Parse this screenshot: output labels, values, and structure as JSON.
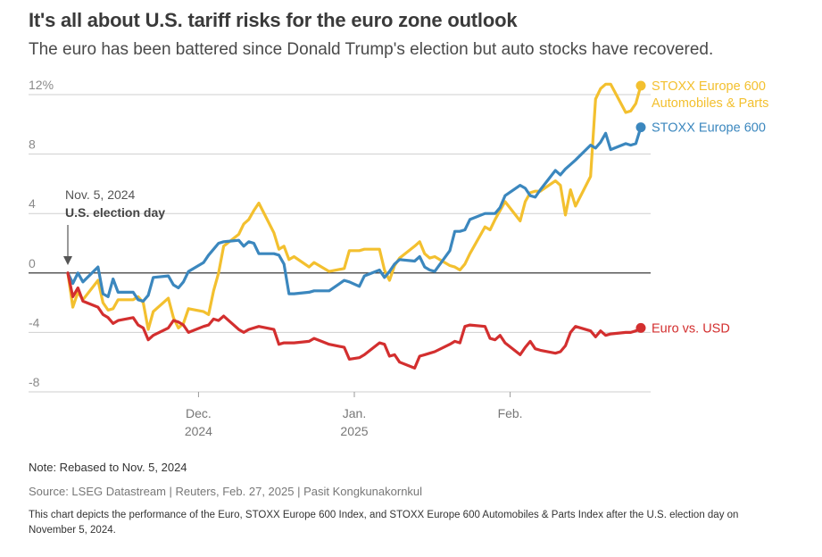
{
  "header": {
    "title": "It's all about U.S. tariff risks for the euro zone outlook",
    "subtitle": "The euro has been battered since Donald Trump's election but auto stocks have recovered."
  },
  "footer": {
    "note": "Note: Rebased to Nov. 5, 2024",
    "source": "Source: LSEG Datastream | Reuters, Feb. 27, 2025 | Pasit Kongkunakornkul",
    "description": "This chart depicts the performance of the Euro, STOXX Europe 600 Index, and STOXX Europe 600 Automobiles & Parts Index after the U.S. election day on November 5, 2024."
  },
  "chart_data": {
    "type": "line",
    "ylim": [
      -8,
      12
    ],
    "y_ticks": [
      {
        "value": 12,
        "label": "12%"
      },
      {
        "value": 8,
        "label": "8"
      },
      {
        "value": 4,
        "label": "4"
      },
      {
        "value": 0,
        "label": "0"
      },
      {
        "value": -4,
        "label": "-4"
      },
      {
        "value": -8,
        "label": "-8"
      }
    ],
    "x_range": [
      "2024-11-05",
      "2025-02-27"
    ],
    "x_ticks": [
      {
        "date": "2024-12-01",
        "line1": "Dec.",
        "line2": "2024"
      },
      {
        "date": "2025-01-01",
        "line1": "Jan.",
        "line2": "2025"
      },
      {
        "date": "2025-02-01",
        "line1": "Feb.",
        "line2": ""
      }
    ],
    "annotation": {
      "date": "2024-11-05",
      "line1": "Nov. 5, 2024",
      "line2": "U.S. election day"
    },
    "series": [
      {
        "name": "STOXX Europe 600 Automobiles & Parts",
        "label_lines": [
          "STOXX Europe 600",
          "Automobiles & Parts"
        ],
        "color": "#f3c02f",
        "points": [
          [
            "2024-11-05",
            0
          ],
          [
            "2024-11-06",
            -2.3
          ],
          [
            "2024-11-07",
            -1.3
          ],
          [
            "2024-11-08",
            -1.8
          ],
          [
            "2024-11-11",
            -0.5
          ],
          [
            "2024-11-12",
            -2
          ],
          [
            "2024-11-13",
            -2.5
          ],
          [
            "2024-11-14",
            -2.4
          ],
          [
            "2024-11-15",
            -1.8
          ],
          [
            "2024-11-18",
            -1.8
          ],
          [
            "2024-11-19",
            -1.6
          ],
          [
            "2024-11-20",
            -2
          ],
          [
            "2024-11-21",
            -3.8
          ],
          [
            "2024-11-22",
            -2.6
          ],
          [
            "2024-11-25",
            -1.7
          ],
          [
            "2024-11-26",
            -3
          ],
          [
            "2024-11-27",
            -3.7
          ],
          [
            "2024-11-28",
            -3.4
          ],
          [
            "2024-11-29",
            -2.4
          ],
          [
            "2024-12-02",
            -2.6
          ],
          [
            "2024-12-03",
            -2.8
          ],
          [
            "2024-12-04",
            -1.2
          ],
          [
            "2024-12-05",
            0
          ],
          [
            "2024-12-06",
            1.8
          ],
          [
            "2024-12-09",
            2.6
          ],
          [
            "2024-12-10",
            3.3
          ],
          [
            "2024-12-11",
            3.6
          ],
          [
            "2024-12-12",
            4.2
          ],
          [
            "2024-12-13",
            4.7
          ],
          [
            "2024-12-16",
            2.7
          ],
          [
            "2024-12-17",
            1.6
          ],
          [
            "2024-12-18",
            1.8
          ],
          [
            "2024-12-19",
            0.9
          ],
          [
            "2024-12-20",
            1.1
          ],
          [
            "2024-12-23",
            0.4
          ],
          [
            "2024-12-24",
            0.7
          ],
          [
            "2024-12-27",
            0.1
          ],
          [
            "2024-12-30",
            0.3
          ],
          [
            "2024-12-31",
            1.5
          ],
          [
            "2025-01-02",
            1.5
          ],
          [
            "2025-01-03",
            1.6
          ],
          [
            "2025-01-06",
            1.6
          ],
          [
            "2025-01-07",
            0.2
          ],
          [
            "2025-01-08",
            -0.5
          ],
          [
            "2025-01-09",
            0.5
          ],
          [
            "2025-01-10",
            1
          ],
          [
            "2025-01-13",
            1.8
          ],
          [
            "2025-01-14",
            2.1
          ],
          [
            "2025-01-15",
            1.3
          ],
          [
            "2025-01-16",
            1
          ],
          [
            "2025-01-17",
            1.1
          ],
          [
            "2025-01-20",
            0.5
          ],
          [
            "2025-01-21",
            0.4
          ],
          [
            "2025-01-22",
            0.2
          ],
          [
            "2025-01-23",
            0.6
          ],
          [
            "2025-01-24",
            1.3
          ],
          [
            "2025-01-27",
            3.1
          ],
          [
            "2025-01-28",
            2.9
          ],
          [
            "2025-01-29",
            3.6
          ],
          [
            "2025-01-30",
            4.2
          ],
          [
            "2025-01-31",
            4.8
          ],
          [
            "2025-02-03",
            3.5
          ],
          [
            "2025-02-04",
            4.8
          ],
          [
            "2025-02-05",
            5.4
          ],
          [
            "2025-02-06",
            5.5
          ],
          [
            "2025-02-07",
            5.5
          ],
          [
            "2025-02-10",
            6.2
          ],
          [
            "2025-02-11",
            5.9
          ],
          [
            "2025-02-12",
            3.9
          ],
          [
            "2025-02-13",
            5.6
          ],
          [
            "2025-02-14",
            4.5
          ],
          [
            "2025-02-17",
            6.5
          ],
          [
            "2025-02-18",
            11.7
          ],
          [
            "2025-02-19",
            12.4
          ],
          [
            "2025-02-20",
            12.7
          ],
          [
            "2025-02-21",
            12.7
          ],
          [
            "2025-02-24",
            10.8
          ],
          [
            "2025-02-25",
            10.9
          ],
          [
            "2025-02-26",
            11.4
          ],
          [
            "2025-02-27",
            12.6
          ]
        ]
      },
      {
        "name": "STOXX Europe 600",
        "label_lines": [
          "STOXX Europe 600"
        ],
        "color": "#3b87be",
        "points": [
          [
            "2024-11-05",
            0
          ],
          [
            "2024-11-06",
            -0.7
          ],
          [
            "2024-11-07",
            0
          ],
          [
            "2024-11-08",
            -0.6
          ],
          [
            "2024-11-11",
            0.4
          ],
          [
            "2024-11-12",
            -1.4
          ],
          [
            "2024-11-13",
            -1.6
          ],
          [
            "2024-11-14",
            -0.4
          ],
          [
            "2024-11-15",
            -1.3
          ],
          [
            "2024-11-18",
            -1.3
          ],
          [
            "2024-11-19",
            -1.8
          ],
          [
            "2024-11-20",
            -1.9
          ],
          [
            "2024-11-21",
            -1.5
          ],
          [
            "2024-11-22",
            -0.3
          ],
          [
            "2024-11-25",
            -0.2
          ],
          [
            "2024-11-26",
            -0.8
          ],
          [
            "2024-11-27",
            -1
          ],
          [
            "2024-11-28",
            -0.6
          ],
          [
            "2024-11-29",
            0.1
          ],
          [
            "2024-12-02",
            0.7
          ],
          [
            "2024-12-03",
            1.2
          ],
          [
            "2024-12-04",
            1.6
          ],
          [
            "2024-12-05",
            2
          ],
          [
            "2024-12-06",
            2.1
          ],
          [
            "2024-12-09",
            2.2
          ],
          [
            "2024-12-10",
            1.8
          ],
          [
            "2024-12-11",
            2.1
          ],
          [
            "2024-12-12",
            2
          ],
          [
            "2024-12-13",
            1.3
          ],
          [
            "2024-12-16",
            1.3
          ],
          [
            "2024-12-17",
            1.2
          ],
          [
            "2024-12-18",
            0.6
          ],
          [
            "2024-12-19",
            -1.4
          ],
          [
            "2024-12-20",
            -1.4
          ],
          [
            "2024-12-23",
            -1.3
          ],
          [
            "2024-12-24",
            -1.2
          ],
          [
            "2024-12-27",
            -1.2
          ],
          [
            "2024-12-30",
            -0.5
          ],
          [
            "2024-12-31",
            -0.6
          ],
          [
            "2025-01-02",
            -0.9
          ],
          [
            "2025-01-03",
            -0.2
          ],
          [
            "2025-01-06",
            0.2
          ],
          [
            "2025-01-07",
            -0.3
          ],
          [
            "2025-01-08",
            0.1
          ],
          [
            "2025-01-09",
            0.6
          ],
          [
            "2025-01-10",
            0.9
          ],
          [
            "2025-01-13",
            0.8
          ],
          [
            "2025-01-14",
            1.1
          ],
          [
            "2025-01-15",
            0.4
          ],
          [
            "2025-01-16",
            0.2
          ],
          [
            "2025-01-17",
            0.1
          ],
          [
            "2025-01-20",
            1.5
          ],
          [
            "2025-01-21",
            2.8
          ],
          [
            "2025-01-22",
            2.8
          ],
          [
            "2025-01-23",
            2.9
          ],
          [
            "2025-01-24",
            3.6
          ],
          [
            "2025-01-27",
            4
          ],
          [
            "2025-01-28",
            4
          ],
          [
            "2025-01-29",
            4
          ],
          [
            "2025-01-30",
            4.4
          ],
          [
            "2025-01-31",
            5.2
          ],
          [
            "2025-02-03",
            5.9
          ],
          [
            "2025-02-04",
            5.7
          ],
          [
            "2025-02-05",
            5.2
          ],
          [
            "2025-02-06",
            5.1
          ],
          [
            "2025-02-07",
            5.6
          ],
          [
            "2025-02-10",
            6.9
          ],
          [
            "2025-02-11",
            6.6
          ],
          [
            "2025-02-12",
            7
          ],
          [
            "2025-02-13",
            7.3
          ],
          [
            "2025-02-14",
            7.6
          ],
          [
            "2025-02-17",
            8.6
          ],
          [
            "2025-02-18",
            8.4
          ],
          [
            "2025-02-19",
            8.8
          ],
          [
            "2025-02-20",
            9.4
          ],
          [
            "2025-02-21",
            8.3
          ],
          [
            "2025-02-24",
            8.7
          ],
          [
            "2025-02-25",
            8.6
          ],
          [
            "2025-02-26",
            8.7
          ],
          [
            "2025-02-27",
            9.8
          ]
        ]
      },
      {
        "name": "Euro vs. USD",
        "label_lines": [
          "Euro vs. USD"
        ],
        "color": "#d32f2f",
        "points": [
          [
            "2024-11-05",
            0
          ],
          [
            "2024-11-06",
            -1.6
          ],
          [
            "2024-11-07",
            -1
          ],
          [
            "2024-11-08",
            -1.9
          ],
          [
            "2024-11-11",
            -2.3
          ],
          [
            "2024-11-12",
            -2.8
          ],
          [
            "2024-11-13",
            -3
          ],
          [
            "2024-11-14",
            -3.4
          ],
          [
            "2024-11-15",
            -3.2
          ],
          [
            "2024-11-18",
            -3
          ],
          [
            "2024-11-19",
            -3.5
          ],
          [
            "2024-11-20",
            -3.7
          ],
          [
            "2024-11-21",
            -4.5
          ],
          [
            "2024-11-22",
            -4.2
          ],
          [
            "2024-11-25",
            -3.7
          ],
          [
            "2024-11-26",
            -3.2
          ],
          [
            "2024-11-27",
            -3.3
          ],
          [
            "2024-11-28",
            -3.5
          ],
          [
            "2024-11-29",
            -4
          ],
          [
            "2024-12-02",
            -3.6
          ],
          [
            "2024-12-03",
            -3.5
          ],
          [
            "2024-12-04",
            -3.1
          ],
          [
            "2024-12-05",
            -3.2
          ],
          [
            "2024-12-06",
            -2.9
          ],
          [
            "2024-12-09",
            -3.8
          ],
          [
            "2024-12-10",
            -4
          ],
          [
            "2024-12-11",
            -3.8
          ],
          [
            "2024-12-12",
            -3.7
          ],
          [
            "2024-12-13",
            -3.6
          ],
          [
            "2024-12-16",
            -3.8
          ],
          [
            "2024-12-17",
            -4.8
          ],
          [
            "2024-12-18",
            -4.7
          ],
          [
            "2024-12-19",
            -4.7
          ],
          [
            "2024-12-20",
            -4.7
          ],
          [
            "2024-12-23",
            -4.6
          ],
          [
            "2024-12-24",
            -4.4
          ],
          [
            "2024-12-27",
            -4.8
          ],
          [
            "2024-12-30",
            -5
          ],
          [
            "2024-12-31",
            -5.8
          ],
          [
            "2025-01-02",
            -5.7
          ],
          [
            "2025-01-03",
            -5.5
          ],
          [
            "2025-01-06",
            -4.7
          ],
          [
            "2025-01-07",
            -4.8
          ],
          [
            "2025-01-08",
            -5.6
          ],
          [
            "2025-01-09",
            -5.5
          ],
          [
            "2025-01-10",
            -6
          ],
          [
            "2025-01-13",
            -6.4
          ],
          [
            "2025-01-14",
            -5.6
          ],
          [
            "2025-01-15",
            -5.5
          ],
          [
            "2025-01-16",
            -5.4
          ],
          [
            "2025-01-17",
            -5.3
          ],
          [
            "2025-01-20",
            -4.8
          ],
          [
            "2025-01-21",
            -4.6
          ],
          [
            "2025-01-22",
            -4.7
          ],
          [
            "2025-01-23",
            -3.6
          ],
          [
            "2025-01-24",
            -3.5
          ],
          [
            "2025-01-27",
            -3.6
          ],
          [
            "2025-01-28",
            -4.4
          ],
          [
            "2025-01-29",
            -4.5
          ],
          [
            "2025-01-30",
            -4.2
          ],
          [
            "2025-01-31",
            -4.7
          ],
          [
            "2025-02-03",
            -5.5
          ],
          [
            "2025-02-04",
            -5
          ],
          [
            "2025-02-05",
            -4.6
          ],
          [
            "2025-02-06",
            -5.1
          ],
          [
            "2025-02-07",
            -5.2
          ],
          [
            "2025-02-10",
            -5.4
          ],
          [
            "2025-02-11",
            -5.3
          ],
          [
            "2025-02-12",
            -4.9
          ],
          [
            "2025-02-13",
            -4
          ],
          [
            "2025-02-14",
            -3.6
          ],
          [
            "2025-02-17",
            -3.9
          ],
          [
            "2025-02-18",
            -4.3
          ],
          [
            "2025-02-19",
            -3.9
          ],
          [
            "2025-02-20",
            -4.2
          ],
          [
            "2025-02-21",
            -4.1
          ],
          [
            "2025-02-24",
            -4
          ],
          [
            "2025-02-25",
            -4
          ],
          [
            "2025-02-26",
            -3.9
          ],
          [
            "2025-02-27",
            -3.7
          ]
        ]
      }
    ]
  }
}
